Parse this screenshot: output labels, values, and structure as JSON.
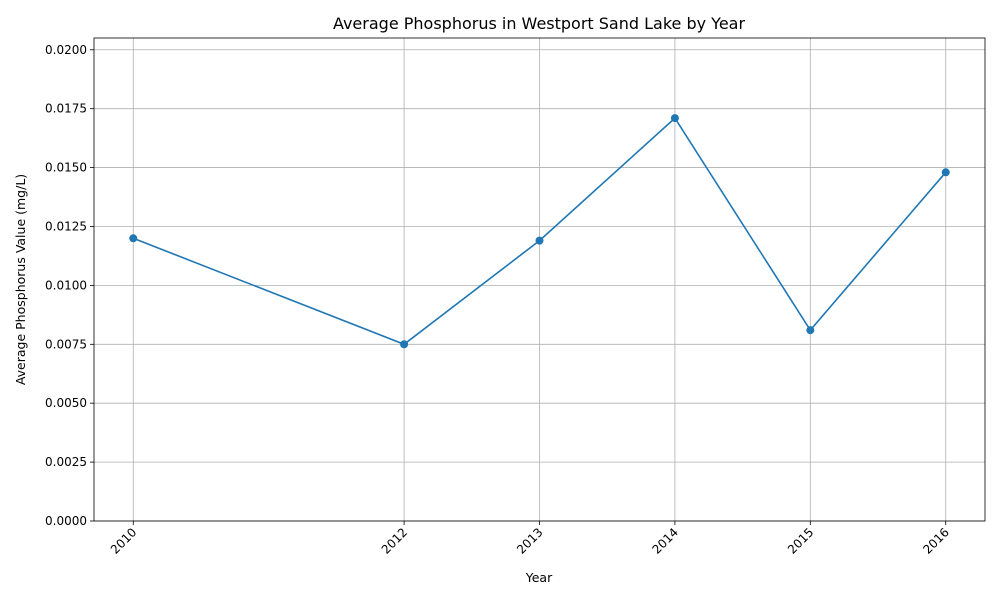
{
  "chart_data": {
    "type": "line",
    "title": "Average Phosphorus in Westport Sand Lake by Year",
    "xlabel": "Year",
    "ylabel": "Average Phosphorus Value (mg/L)",
    "x": [
      2010,
      2012,
      2013,
      2014,
      2015,
      2016
    ],
    "series": [
      {
        "values": [
          0.012,
          0.0075,
          0.0119,
          0.0171,
          0.0081,
          0.0148
        ],
        "color": "#1f77b4",
        "marker": "circle"
      }
    ],
    "xlim": [
      2009.71,
      2016.29
    ],
    "ylim": [
      0,
      0.0205
    ],
    "yticks": [
      "0.0000",
      "0.0025",
      "0.0050",
      "0.0075",
      "0.0100",
      "0.0125",
      "0.0150",
      "0.0175",
      "0.0200"
    ],
    "xticks": [
      "2010",
      "2012",
      "2013",
      "2014",
      "2015",
      "2016"
    ],
    "grid": true,
    "legend": "none"
  }
}
